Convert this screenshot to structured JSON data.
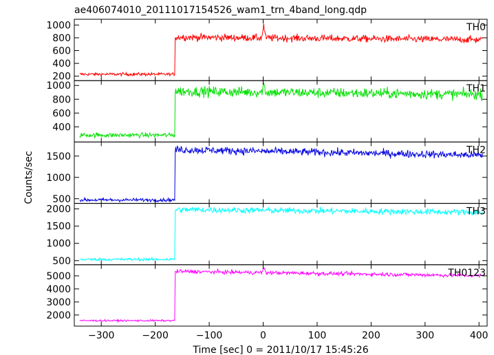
{
  "chart_data": {
    "type": "line",
    "title": "ae406074010_20111017154526_wam1_trn_4band_long.qdp",
    "ylabel": "Counts/sec",
    "xlabel": "Time [sec] 0 = 2011/10/17 15:45:26",
    "xlim": [
      -350,
      415
    ],
    "x_ticks": [
      -300,
      -200,
      -100,
      0,
      100,
      200,
      300,
      400
    ],
    "x_start": -340,
    "x_end": 407,
    "x_step": 1,
    "step_time": -163,
    "panels": [
      {
        "name": "TH0",
        "color": "#ff0000",
        "ylim": [
          130,
          1090
        ],
        "yticks": [
          200,
          400,
          600,
          800,
          1000
        ],
        "pre_level": 230,
        "post_level_start": 810,
        "post_level_end": 770,
        "noise": 28,
        "spike_height": 190
      },
      {
        "name": "TH1",
        "color": "#00e000",
        "ylim": [
          180,
          1070
        ],
        "yticks": [
          400,
          600,
          800,
          1000
        ],
        "pre_level": 280,
        "post_level_start": 915,
        "post_level_end": 870,
        "noise": 38,
        "spike_height": 110
      },
      {
        "name": "TH2",
        "color": "#0000e0",
        "ylim": [
          390,
          1830
        ],
        "yticks": [
          500,
          1000,
          1500
        ],
        "pre_level": 470,
        "post_level_start": 1650,
        "post_level_end": 1520,
        "noise": 45,
        "spike_height": 0
      },
      {
        "name": "TH3",
        "color": "#00ffff",
        "ylim": [
          380,
          2160
        ],
        "yticks": [
          500,
          1000,
          1500,
          2000
        ],
        "pre_level": 535,
        "post_level_start": 1980,
        "post_level_end": 1900,
        "noise": 45,
        "spike_height": 0
      },
      {
        "name": "TH0123",
        "color": "#ff00ff",
        "ylim": [
          1150,
          5850
        ],
        "yticks": [
          2000,
          3000,
          4000,
          5000
        ],
        "pre_level": 1570,
        "post_level_start": 5340,
        "post_level_end": 5010,
        "noise": 75,
        "spike_height": 350
      }
    ]
  }
}
